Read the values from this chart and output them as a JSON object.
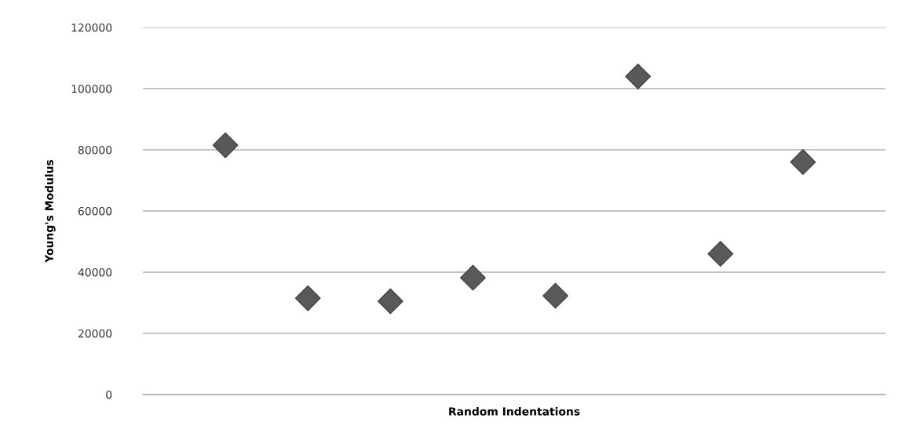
{
  "chart_data": {
    "type": "scatter",
    "xlabel": "Random Indentations",
    "ylabel": "Young's Modulus",
    "categories": [
      null,
      null,
      null,
      null,
      null,
      null,
      null,
      null
    ],
    "series": [
      {
        "color": "#595959",
        "values": [
          81500,
          31500,
          30500,
          38200,
          32300,
          104000,
          46000,
          76000
        ]
      }
    ],
    "ylim": [
      0,
      120000
    ],
    "yticks": [
      0,
      20000,
      40000,
      60000,
      80000,
      100000,
      120000
    ],
    "grid": "y",
    "marker": "diamond"
  }
}
